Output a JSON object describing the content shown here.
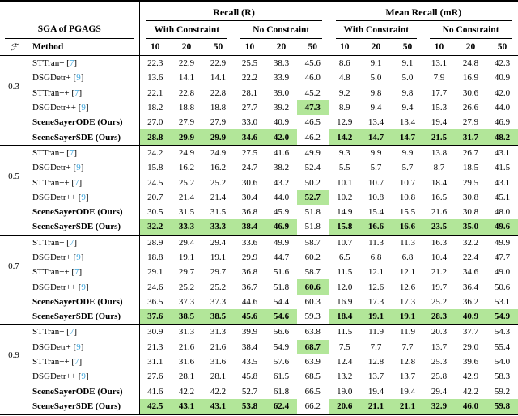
{
  "table": {
    "title_groups": {
      "recall": "Recall (R)",
      "mean_recall": "Mean Recall (mR)"
    },
    "subgroups": {
      "with": "With Constraint",
      "no": "No Constraint"
    },
    "corner": {
      "sga": "SGA of PGAGS",
      "f": "ℱ",
      "method": "Method"
    },
    "k": [
      "10",
      "20",
      "50"
    ],
    "cite_brackets": [
      "[",
      "]"
    ],
    "colors": {
      "highlight": "#b2e699",
      "cite": "#41a7dc"
    },
    "blocks": [
      {
        "f": "0.3",
        "rows": [
          {
            "method": "STTran+",
            "cite": "7",
            "bold": false,
            "hl": [],
            "values": [
              "22.3",
              "22.9",
              "22.9",
              "25.5",
              "38.3",
              "45.6",
              "8.6",
              "9.1",
              "9.1",
              "13.1",
              "24.8",
              "42.3"
            ]
          },
          {
            "method": "DSGDetr+",
            "cite": "9",
            "bold": false,
            "hl": [],
            "values": [
              "13.6",
              "14.1",
              "14.1",
              "22.2",
              "33.9",
              "46.0",
              "4.8",
              "5.0",
              "5.0",
              "7.9",
              "16.9",
              "40.9"
            ]
          },
          {
            "method": "STTran++",
            "cite": "7",
            "bold": false,
            "hl": [],
            "values": [
              "22.1",
              "22.8",
              "22.8",
              "28.1",
              "39.0",
              "45.2",
              "9.2",
              "9.8",
              "9.8",
              "17.7",
              "30.6",
              "42.0"
            ]
          },
          {
            "method": "DSGDetr++",
            "cite": "9",
            "bold": false,
            "hl": [
              5
            ],
            "values": [
              "18.2",
              "18.8",
              "18.8",
              "27.7",
              "39.2",
              "47.3",
              "8.9",
              "9.4",
              "9.4",
              "15.3",
              "26.6",
              "44.0"
            ]
          },
          {
            "method": "SceneSayerODE (Ours)",
            "cite": "",
            "bold": true,
            "hl": [],
            "values": [
              "27.0",
              "27.9",
              "27.9",
              "33.0",
              "40.9",
              "46.5",
              "12.9",
              "13.4",
              "13.4",
              "19.4",
              "27.9",
              "46.9"
            ]
          },
          {
            "method": "SceneSayerSDE (Ours)",
            "cite": "",
            "bold": true,
            "hl": [
              0,
              1,
              2,
              3,
              4,
              6,
              7,
              8,
              9,
              10,
              11
            ],
            "values": [
              "28.8",
              "29.9",
              "29.9",
              "34.6",
              "42.0",
              "46.2",
              "14.2",
              "14.7",
              "14.7",
              "21.5",
              "31.7",
              "48.2"
            ]
          }
        ]
      },
      {
        "f": "0.5",
        "rows": [
          {
            "method": "STTran+",
            "cite": "7",
            "bold": false,
            "hl": [],
            "values": [
              "24.2",
              "24.9",
              "24.9",
              "27.5",
              "41.6",
              "49.9",
              "9.3",
              "9.9",
              "9.9",
              "13.8",
              "26.7",
              "43.1"
            ]
          },
          {
            "method": "DSGDetr+",
            "cite": "9",
            "bold": false,
            "hl": [],
            "values": [
              "15.8",
              "16.2",
              "16.2",
              "24.7",
              "38.2",
              "52.4",
              "5.5",
              "5.7",
              "5.7",
              "8.7",
              "18.5",
              "41.5"
            ]
          },
          {
            "method": "STTran++",
            "cite": "7",
            "bold": false,
            "hl": [],
            "values": [
              "24.5",
              "25.2",
              "25.2",
              "30.6",
              "43.2",
              "50.2",
              "10.1",
              "10.7",
              "10.7",
              "18.4",
              "29.5",
              "43.1"
            ]
          },
          {
            "method": "DSGDetr++",
            "cite": "9",
            "bold": false,
            "hl": [
              5
            ],
            "values": [
              "20.7",
              "21.4",
              "21.4",
              "30.4",
              "44.0",
              "52.7",
              "10.2",
              "10.8",
              "10.8",
              "16.5",
              "30.8",
              "45.1"
            ]
          },
          {
            "method": "SceneSayerODE (Ours)",
            "cite": "",
            "bold": true,
            "hl": [],
            "values": [
              "30.5",
              "31.5",
              "31.5",
              "36.8",
              "45.9",
              "51.8",
              "14.9",
              "15.4",
              "15.5",
              "21.6",
              "30.8",
              "48.0"
            ]
          },
          {
            "method": "SceneSayerSDE (Ours)",
            "cite": "",
            "bold": true,
            "hl": [
              0,
              1,
              2,
              3,
              4,
              6,
              7,
              8,
              9,
              10,
              11
            ],
            "values": [
              "32.2",
              "33.3",
              "33.3",
              "38.4",
              "46.9",
              "51.8",
              "15.8",
              "16.6",
              "16.6",
              "23.5",
              "35.0",
              "49.6"
            ]
          }
        ]
      },
      {
        "f": "0.7",
        "rows": [
          {
            "method": "STTran+",
            "cite": "7",
            "bold": false,
            "hl": [],
            "values": [
              "28.9",
              "29.4",
              "29.4",
              "33.6",
              "49.9",
              "58.7",
              "10.7",
              "11.3",
              "11.3",
              "16.3",
              "32.2",
              "49.9"
            ]
          },
          {
            "method": "DSGDetr+",
            "cite": "9",
            "bold": false,
            "hl": [],
            "values": [
              "18.8",
              "19.1",
              "19.1",
              "29.9",
              "44.7",
              "60.2",
              "6.5",
              "6.8",
              "6.8",
              "10.4",
              "22.4",
              "47.7"
            ]
          },
          {
            "method": "STTran++",
            "cite": "7",
            "bold": false,
            "hl": [],
            "values": [
              "29.1",
              "29.7",
              "29.7",
              "36.8",
              "51.6",
              "58.7",
              "11.5",
              "12.1",
              "12.1",
              "21.2",
              "34.6",
              "49.0"
            ]
          },
          {
            "method": "DSGDetr++",
            "cite": "9",
            "bold": false,
            "hl": [
              5
            ],
            "values": [
              "24.6",
              "25.2",
              "25.2",
              "36.7",
              "51.8",
              "60.6",
              "12.0",
              "12.6",
              "12.6",
              "19.7",
              "36.4",
              "50.6"
            ]
          },
          {
            "method": "SceneSayerODE (Ours)",
            "cite": "",
            "bold": true,
            "hl": [],
            "values": [
              "36.5",
              "37.3",
              "37.3",
              "44.6",
              "54.4",
              "60.3",
              "16.9",
              "17.3",
              "17.3",
              "25.2",
              "36.2",
              "53.1"
            ]
          },
          {
            "method": "SceneSayerSDE (Ours)",
            "cite": "",
            "bold": true,
            "hl": [
              0,
              1,
              2,
              3,
              4,
              6,
              7,
              8,
              9,
              10,
              11
            ],
            "values": [
              "37.6",
              "38.5",
              "38.5",
              "45.6",
              "54.6",
              "59.3",
              "18.4",
              "19.1",
              "19.1",
              "28.3",
              "40.9",
              "54.9"
            ]
          }
        ]
      },
      {
        "f": "0.9",
        "rows": [
          {
            "method": "STTran+",
            "cite": "7",
            "bold": false,
            "hl": [],
            "values": [
              "30.9",
              "31.3",
              "31.3",
              "39.9",
              "56.6",
              "63.8",
              "11.5",
              "11.9",
              "11.9",
              "20.3",
              "37.7",
              "54.3"
            ]
          },
          {
            "method": "DSGDetr+",
            "cite": "9",
            "bold": false,
            "hl": [
              5
            ],
            "values": [
              "21.3",
              "21.6",
              "21.6",
              "38.4",
              "54.9",
              "68.7",
              "7.5",
              "7.7",
              "7.7",
              "13.7",
              "29.0",
              "55.4"
            ]
          },
          {
            "method": "STTran++",
            "cite": "7",
            "bold": false,
            "hl": [],
            "values": [
              "31.1",
              "31.6",
              "31.6",
              "43.5",
              "57.6",
              "63.9",
              "12.4",
              "12.8",
              "12.8",
              "25.3",
              "39.6",
              "54.0"
            ]
          },
          {
            "method": "DSGDetr++",
            "cite": "9",
            "bold": false,
            "hl": [],
            "values": [
              "27.6",
              "28.1",
              "28.1",
              "45.8",
              "61.5",
              "68.5",
              "13.2",
              "13.7",
              "13.7",
              "25.8",
              "42.9",
              "58.3"
            ]
          },
          {
            "method": "SceneSayerODE (Ours)",
            "cite": "",
            "bold": true,
            "hl": [],
            "values": [
              "41.6",
              "42.2",
              "42.2",
              "52.7",
              "61.8",
              "66.5",
              "19.0",
              "19.4",
              "19.4",
              "29.4",
              "42.2",
              "59.2"
            ]
          },
          {
            "method": "SceneSayerSDE (Ours)",
            "cite": "",
            "bold": true,
            "hl": [
              0,
              1,
              2,
              3,
              4,
              6,
              7,
              8,
              9,
              10,
              11
            ],
            "values": [
              "42.5",
              "43.1",
              "43.1",
              "53.8",
              "62.4",
              "66.2",
              "20.6",
              "21.1",
              "21.1",
              "32.9",
              "46.0",
              "59.8"
            ]
          }
        ]
      }
    ]
  }
}
